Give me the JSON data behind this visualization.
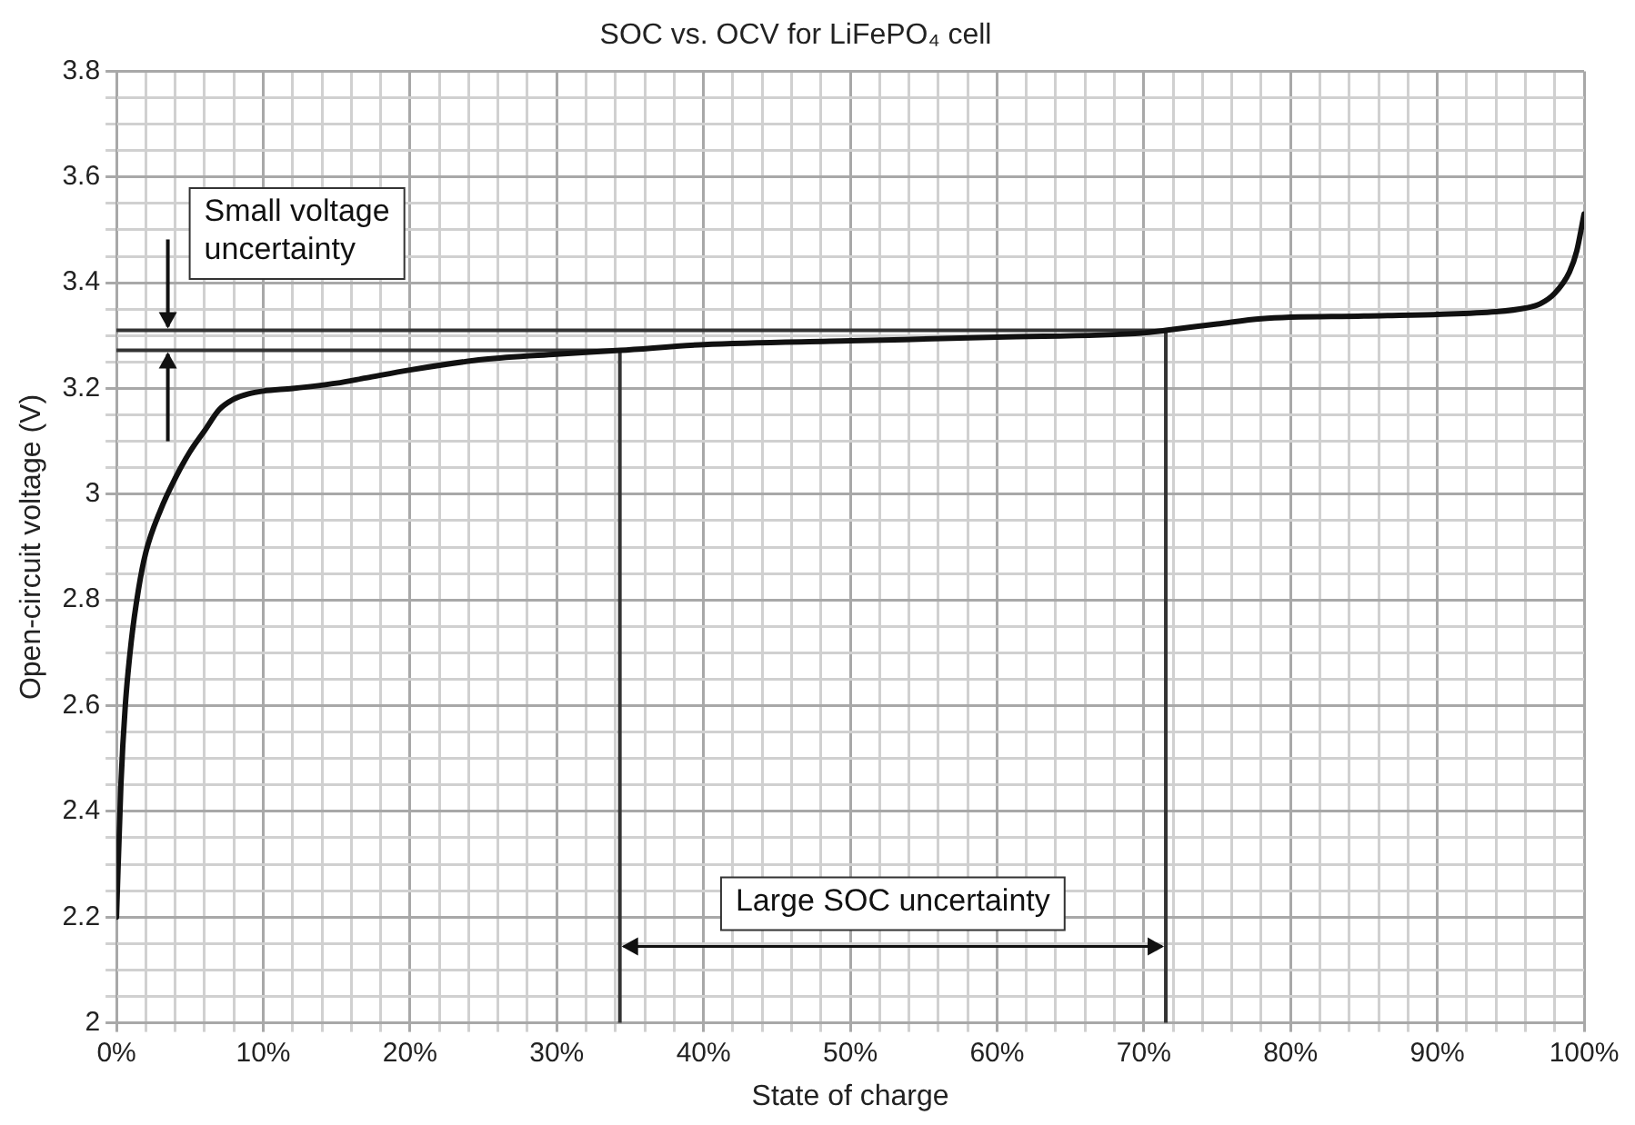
{
  "chart_data": {
    "type": "line",
    "title": "SOC vs. OCV for LiFePO₄ cell",
    "xlabel": "State of charge",
    "ylabel": "Open-circuit voltage (V)",
    "xlim": [
      0,
      100
    ],
    "ylim": [
      2,
      3.8
    ],
    "xticks": [
      {
        "value": 0,
        "label": "0%"
      },
      {
        "value": 2,
        "label": null
      },
      {
        "value": 4,
        "label": null
      },
      {
        "value": 6,
        "label": null
      },
      {
        "value": 8,
        "label": null
      },
      {
        "value": 10,
        "label": "10%"
      },
      {
        "value": 12,
        "label": null
      },
      {
        "value": 14,
        "label": null
      },
      {
        "value": 16,
        "label": null
      },
      {
        "value": 18,
        "label": null
      },
      {
        "value": 20,
        "label": "20%"
      },
      {
        "value": 22,
        "label": null
      },
      {
        "value": 24,
        "label": null
      },
      {
        "value": 26,
        "label": null
      },
      {
        "value": 28,
        "label": null
      },
      {
        "value": 30,
        "label": "30%"
      },
      {
        "value": 32,
        "label": null
      },
      {
        "value": 34,
        "label": null
      },
      {
        "value": 36,
        "label": null
      },
      {
        "value": 38,
        "label": null
      },
      {
        "value": 40,
        "label": "40%"
      },
      {
        "value": 42,
        "label": null
      },
      {
        "value": 44,
        "label": null
      },
      {
        "value": 46,
        "label": null
      },
      {
        "value": 48,
        "label": null
      },
      {
        "value": 50,
        "label": "50%"
      },
      {
        "value": 52,
        "label": null
      },
      {
        "value": 54,
        "label": null
      },
      {
        "value": 56,
        "label": null
      },
      {
        "value": 58,
        "label": null
      },
      {
        "value": 60,
        "label": "60%"
      },
      {
        "value": 62,
        "label": null
      },
      {
        "value": 64,
        "label": null
      },
      {
        "value": 66,
        "label": null
      },
      {
        "value": 68,
        "label": null
      },
      {
        "value": 70,
        "label": "70%"
      },
      {
        "value": 72,
        "label": null
      },
      {
        "value": 74,
        "label": null
      },
      {
        "value": 76,
        "label": null
      },
      {
        "value": 78,
        "label": null
      },
      {
        "value": 80,
        "label": "80%"
      },
      {
        "value": 82,
        "label": null
      },
      {
        "value": 84,
        "label": null
      },
      {
        "value": 86,
        "label": null
      },
      {
        "value": 88,
        "label": null
      },
      {
        "value": 90,
        "label": "90%"
      },
      {
        "value": 92,
        "label": null
      },
      {
        "value": 94,
        "label": null
      },
      {
        "value": 96,
        "label": null
      },
      {
        "value": 98,
        "label": null
      },
      {
        "value": 100,
        "label": "100%"
      }
    ],
    "yticks": [
      2,
      {
        "value": 2.05,
        "label": null
      },
      {
        "value": 2.1,
        "label": null
      },
      {
        "value": 2.15,
        "label": null
      },
      2.2,
      {
        "value": 2.25,
        "label": null
      },
      {
        "value": 2.3,
        "label": null
      },
      {
        "value": 2.35,
        "label": null
      },
      2.4,
      {
        "value": 2.45,
        "label": null
      },
      {
        "value": 2.5,
        "label": null
      },
      {
        "value": 2.55,
        "label": null
      },
      2.6,
      {
        "value": 2.65,
        "label": null
      },
      {
        "value": 2.7,
        "label": null
      },
      {
        "value": 2.75,
        "label": null
      },
      2.8,
      {
        "value": 2.85,
        "label": null
      },
      {
        "value": 2.9,
        "label": null
      },
      {
        "value": 2.95,
        "label": null
      },
      3,
      {
        "value": 3.05,
        "label": null
      },
      {
        "value": 3.1,
        "label": null
      },
      {
        "value": 3.15,
        "label": null
      },
      3.2,
      {
        "value": 3.25,
        "label": null
      },
      {
        "value": 3.3,
        "label": null
      },
      {
        "value": 3.35,
        "label": null
      },
      3.4,
      {
        "value": 3.45,
        "label": null
      },
      {
        "value": 3.5,
        "label": null
      },
      {
        "value": 3.55,
        "label": null
      },
      3.6,
      {
        "value": 3.65,
        "label": null
      },
      {
        "value": 3.7,
        "label": null
      },
      {
        "value": 3.75,
        "label": null
      },
      3.8
    ],
    "grid": true,
    "legend": false,
    "marker": "none",
    "line_style": "solid",
    "series": [
      {
        "color": "#111111",
        "x": [
          0,
          0.3,
          0.6,
          1,
          1.5,
          2,
          3,
          4,
          5,
          6,
          7,
          8,
          9,
          10,
          12,
          15,
          17,
          20,
          25,
          30,
          34.3,
          40,
          50,
          60,
          70,
          71.5,
          75,
          78,
          85,
          90,
          94,
          96,
          97,
          98,
          99,
          99.5,
          100
        ],
        "values": [
          2.2,
          2.45,
          2.6,
          2.72,
          2.82,
          2.89,
          2.97,
          3.03,
          3.08,
          3.12,
          3.16,
          3.18,
          3.19,
          3.195,
          3.2,
          3.21,
          3.22,
          3.235,
          3.255,
          3.265,
          3.272,
          3.283,
          3.29,
          3.297,
          3.305,
          3.31,
          3.322,
          3.332,
          3.337,
          3.34,
          3.345,
          3.352,
          3.36,
          3.38,
          3.42,
          3.46,
          3.53
        ]
      },
      {
        "color": "#333333",
        "x": [
          0,
          71.5,
          71.5
        ],
        "values": [
          3.31,
          3.31,
          2
        ]
      },
      {
        "color": "#333333",
        "x": [
          0,
          34.3,
          34.3
        ],
        "values": [
          3.272,
          3.272,
          2
        ]
      }
    ],
    "annotations": [
      {
        "text": "Small voltage uncertainty",
        "x": 3.5,
        "y": 3.29
      },
      "Large SOC uncertainty"
    ]
  }
}
